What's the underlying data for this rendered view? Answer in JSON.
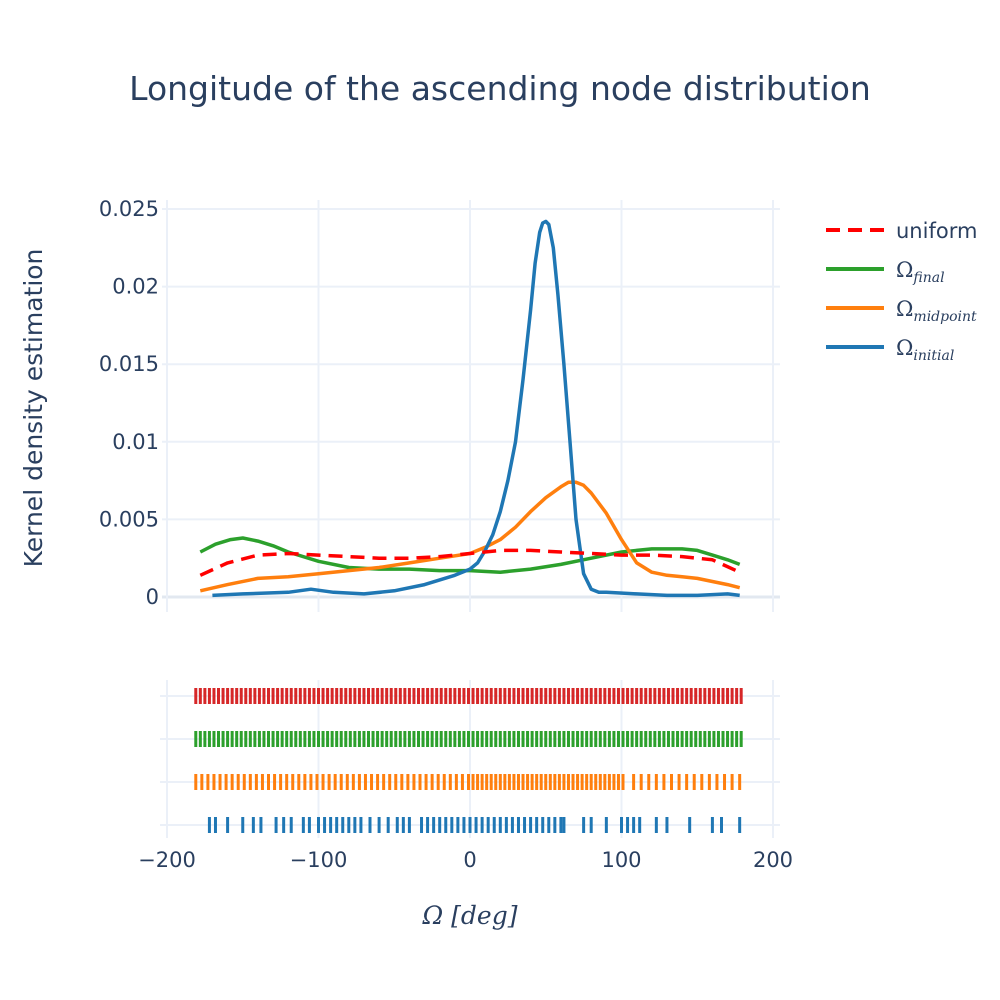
{
  "chart_data": {
    "type": "line",
    "title": "Longitude of the ascending node distribution",
    "ylabel": "Kernel density estimation",
    "xlabel": "Ω [deg]",
    "xlim": [
      -200,
      200
    ],
    "ylim": [
      0,
      0.025
    ],
    "x_ticks": [
      -200,
      -100,
      0,
      100,
      200
    ],
    "x_tick_labels": [
      "−200",
      "−100",
      "0",
      "100",
      "200"
    ],
    "y_ticks": [
      0,
      0.005,
      0.01,
      0.015,
      0.02,
      0.025
    ],
    "y_tick_labels": [
      "0",
      "0.005",
      "0.01",
      "0.015",
      "0.02",
      "0.025"
    ],
    "grid": true,
    "legend_position": "top-right",
    "series": [
      {
        "key": "uniform",
        "name": "uniform",
        "color": "#ff0000",
        "dash": true,
        "x": [
          -178,
          -160,
          -140,
          -120,
          -100,
          -80,
          -60,
          -40,
          -20,
          0,
          20,
          40,
          60,
          80,
          100,
          120,
          140,
          160,
          178
        ],
        "y": [
          0.0014,
          0.0022,
          0.0027,
          0.0028,
          0.0027,
          0.0026,
          0.0025,
          0.0025,
          0.0026,
          0.0028,
          0.003,
          0.003,
          0.0029,
          0.0028,
          0.0027,
          0.0027,
          0.0026,
          0.0024,
          0.0016
        ]
      },
      {
        "key": "final",
        "name": "Ω",
        "sub": "final",
        "color": "#2ca02c",
        "dash": false,
        "x": [
          -178,
          -168,
          -158,
          -150,
          -140,
          -130,
          -120,
          -100,
          -80,
          -60,
          -40,
          -20,
          0,
          20,
          40,
          60,
          80,
          100,
          110,
          120,
          130,
          140,
          150,
          160,
          170,
          178
        ],
        "y": [
          0.0029,
          0.0034,
          0.0037,
          0.0038,
          0.0036,
          0.0033,
          0.0029,
          0.0023,
          0.0019,
          0.0018,
          0.0018,
          0.0017,
          0.0017,
          0.0016,
          0.0018,
          0.0021,
          0.0025,
          0.0029,
          0.003,
          0.0031,
          0.0031,
          0.0031,
          0.003,
          0.0027,
          0.0024,
          0.0021
        ]
      },
      {
        "key": "midpoint",
        "name": "Ω",
        "sub": "midpoint",
        "color": "#ff7f0e",
        "dash": false,
        "x": [
          -178,
          -160,
          -140,
          -120,
          -100,
          -80,
          -60,
          -40,
          -20,
          0,
          10,
          20,
          30,
          40,
          50,
          60,
          65,
          70,
          75,
          80,
          90,
          100,
          110,
          120,
          130,
          140,
          150,
          160,
          170,
          178
        ],
        "y": [
          0.0004,
          0.0008,
          0.0012,
          0.0013,
          0.0015,
          0.0017,
          0.0019,
          0.0022,
          0.0025,
          0.0028,
          0.0032,
          0.0037,
          0.0045,
          0.0055,
          0.0064,
          0.0071,
          0.0074,
          0.0074,
          0.0072,
          0.0067,
          0.0054,
          0.0037,
          0.0022,
          0.0016,
          0.0014,
          0.0013,
          0.0012,
          0.001,
          0.0008,
          0.0006
        ]
      },
      {
        "key": "initial",
        "name": "Ω",
        "sub": "initial",
        "color": "#1f77b4",
        "dash": false,
        "x": [
          -170,
          -150,
          -120,
          -105,
          -90,
          -70,
          -50,
          -30,
          -10,
          0,
          5,
          10,
          15,
          20,
          25,
          30,
          35,
          40,
          43,
          46,
          48,
          50,
          52,
          55,
          58,
          62,
          66,
          70,
          75,
          80,
          85,
          90,
          110,
          130,
          150,
          170,
          178
        ],
        "y": [
          0.0001,
          0.0002,
          0.0003,
          0.0005,
          0.0003,
          0.0002,
          0.0004,
          0.0008,
          0.0014,
          0.0018,
          0.0022,
          0.003,
          0.004,
          0.0055,
          0.0075,
          0.01,
          0.014,
          0.0185,
          0.0215,
          0.0235,
          0.0241,
          0.0242,
          0.024,
          0.0225,
          0.0195,
          0.015,
          0.01,
          0.005,
          0.0015,
          0.0005,
          0.0003,
          0.0003,
          0.0002,
          0.0001,
          0.0001,
          0.0002,
          0.0001
        ]
      }
    ],
    "rugs": [
      {
        "key": "uniform",
        "color": "#d62728",
        "points": [
          -181,
          -178,
          -175,
          -172,
          -169,
          -166,
          -163,
          -160,
          -157,
          -154,
          -151,
          -148,
          -145,
          -142,
          -139,
          -136,
          -133,
          -130,
          -127,
          -124,
          -121,
          -118,
          -115,
          -112,
          -109,
          -106,
          -103,
          -100,
          -97,
          -94,
          -91,
          -88,
          -85,
          -82,
          -79,
          -76,
          -73,
          -70,
          -67,
          -64,
          -61,
          -58,
          -55,
          -52,
          -49,
          -46,
          -43,
          -40,
          -37,
          -34,
          -31,
          -28,
          -25,
          -22,
          -19,
          -16,
          -13,
          -10,
          -7,
          -4,
          -1,
          2,
          5,
          8,
          11,
          14,
          17,
          20,
          23,
          26,
          29,
          32,
          35,
          38,
          41,
          44,
          47,
          50,
          53,
          56,
          59,
          62,
          65,
          68,
          71,
          74,
          77,
          80,
          83,
          86,
          89,
          92,
          95,
          98,
          101,
          104,
          107,
          110,
          113,
          116,
          119,
          122,
          125,
          128,
          131,
          134,
          137,
          140,
          143,
          146,
          149,
          152,
          155,
          158,
          161,
          164,
          167,
          170,
          173,
          176,
          179
        ]
      },
      {
        "key": "final",
        "color": "#2ca02c",
        "points": [
          -181,
          -178,
          -175,
          -172,
          -169,
          -166,
          -163,
          -160,
          -157,
          -154,
          -151,
          -148,
          -145,
          -142,
          -139,
          -136,
          -133,
          -130,
          -127,
          -124,
          -121,
          -118,
          -115,
          -112,
          -109,
          -106,
          -103,
          -100,
          -97,
          -94,
          -91,
          -88,
          -85,
          -82,
          -79,
          -76,
          -73,
          -70,
          -67,
          -64,
          -61,
          -58,
          -55,
          -52,
          -49,
          -46,
          -43,
          -40,
          -37,
          -34,
          -31,
          -28,
          -25,
          -22,
          -19,
          -16,
          -13,
          -10,
          -7,
          -4,
          -1,
          2,
          5,
          8,
          11,
          14,
          17,
          20,
          23,
          26,
          29,
          32,
          35,
          38,
          41,
          44,
          47,
          50,
          53,
          56,
          59,
          62,
          65,
          68,
          71,
          74,
          77,
          80,
          83,
          86,
          89,
          92,
          95,
          98,
          101,
          104,
          107,
          110,
          113,
          116,
          119,
          122,
          125,
          128,
          131,
          134,
          137,
          140,
          143,
          146,
          149,
          152,
          155,
          158,
          161,
          164,
          167,
          170,
          173,
          176,
          179
        ]
      },
      {
        "key": "midpoint",
        "color": "#ff7f0e",
        "points": [
          -181,
          -177,
          -173,
          -169,
          -165,
          -161,
          -157,
          -153,
          -149,
          -145,
          -141,
          -137,
          -133,
          -129,
          -125,
          -121,
          -117,
          -113,
          -109,
          -105,
          -101,
          -97,
          -93,
          -89,
          -85,
          -81,
          -77,
          -73,
          -69,
          -65,
          -61,
          -57,
          -53,
          -49,
          -45,
          -41,
          -37,
          -33,
          -29,
          -25,
          -21,
          -17,
          -13,
          -9,
          -5,
          -1,
          2,
          5,
          8,
          11,
          14,
          17,
          20,
          23,
          26,
          29,
          32,
          35,
          38,
          41,
          44,
          47,
          50,
          53,
          56,
          59,
          62,
          65,
          68,
          71,
          74,
          77,
          80,
          83,
          86,
          89,
          92,
          95,
          98,
          101,
          108,
          113,
          118,
          123,
          128,
          133,
          138,
          143,
          148,
          153,
          158,
          163,
          168,
          173,
          178
        ]
      },
      {
        "key": "initial",
        "color": "#1f77b4",
        "points": [
          -172,
          -168,
          -160,
          -150,
          -143,
          -138,
          -128,
          -123,
          -118,
          -110,
          -106,
          -100,
          -96,
          -92,
          -88,
          -84,
          -80,
          -76,
          -72,
          -66,
          -60,
          -54,
          -48,
          -44,
          -40,
          -32,
          -28,
          -24,
          -20,
          -16,
          -12,
          -8,
          -4,
          0,
          4,
          8,
          12,
          16,
          20,
          24,
          28,
          32,
          36,
          40,
          44,
          48,
          52,
          56,
          60,
          62,
          75,
          80,
          90,
          100,
          104,
          108,
          112,
          123,
          130,
          145,
          160,
          166,
          178
        ]
      }
    ]
  }
}
